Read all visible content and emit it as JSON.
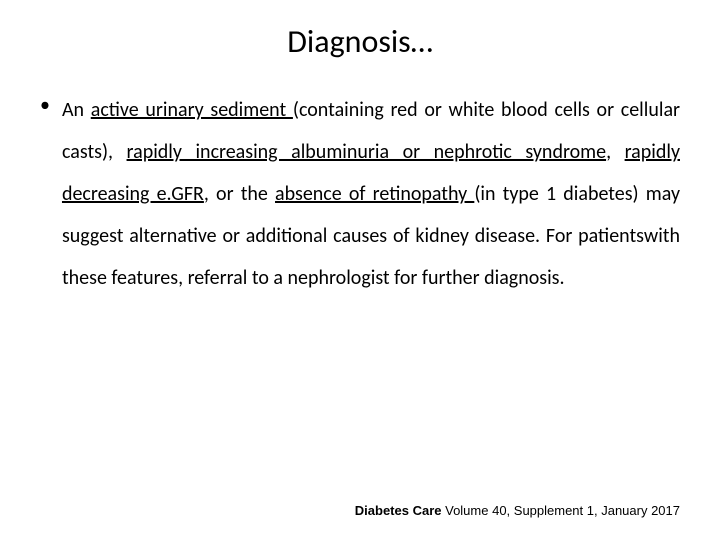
{
  "title": "Diagnosis…",
  "bullet_marker": "•",
  "p": {
    "t1": "An ",
    "u1": "active urinary sediment ",
    "t2": "(containing red or white blood cells or cellular casts), ",
    "u2": "rapidly increasing albuminuria or nephrotic syndrome",
    "t3": ", ",
    "u3": "rapidly decreasing e.GFR",
    "t4": ", or the ",
    "u4": "absence of retinopathy ",
    "t5": "(in type 1 diabetes) may suggest alternative or additional causes of kidney disease. For patientswith these features, referral to a nephrologist for further diagnosis."
  },
  "footer": {
    "journal": "Diabetes Care",
    "rest": "  Volume 40, Supplement 1, January 2017"
  }
}
